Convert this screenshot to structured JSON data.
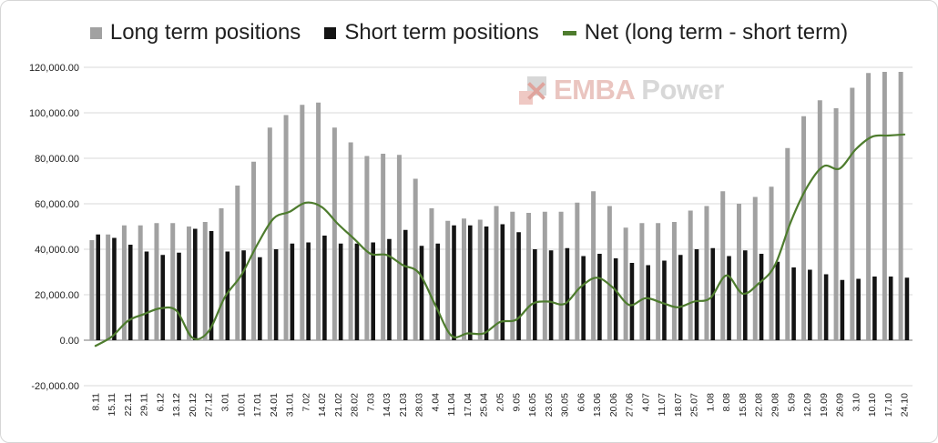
{
  "legend": {
    "items": [
      {
        "label": "Long term positions",
        "swatch": "square",
        "color": "#a1a1a1"
      },
      {
        "label": "Short term positions",
        "swatch": "square",
        "color": "#141414"
      },
      {
        "label": "Net (long term - short term)",
        "swatch": "dash",
        "color": "#4e7c2e"
      }
    ]
  },
  "watermark": {
    "brand_primary": "EMBA",
    "brand_secondary": "Power"
  },
  "colors": {
    "grid": "#d9d9d9",
    "zero_axis": "#a3a3a3",
    "tick_text": "#222222",
    "background": "#ffffff",
    "long_bar": "#a1a1a1",
    "short_bar": "#141414",
    "net_line": "#4e7c2e"
  },
  "chart_data": {
    "type": "bar",
    "title": "",
    "xlabel": "",
    "ylabel": "",
    "grid": true,
    "legend_position": "top",
    "x_label_rotation": -90,
    "ylim": [
      -20000,
      120000
    ],
    "ytick_step": 20000,
    "yticks": [
      {
        "value": 120000,
        "label": "120,000.00"
      },
      {
        "value": 100000,
        "label": "100,000.00"
      },
      {
        "value": 80000,
        "label": "80,000.00"
      },
      {
        "value": 60000,
        "label": "60,000.00"
      },
      {
        "value": 40000,
        "label": "40,000.00"
      },
      {
        "value": 20000,
        "label": "20,000.00"
      },
      {
        "value": 0,
        "label": "0.00"
      },
      {
        "value": -20000,
        "label": "-20,000.00"
      }
    ],
    "categories": [
      "8.11",
      "15.11",
      "22.11",
      "29.11",
      "6.12",
      "13.12",
      "20.12",
      "27.12",
      "3.01",
      "10.01",
      "17.01",
      "24.01",
      "31.01",
      "7.02",
      "14.02",
      "21.02",
      "28.02",
      "7.03",
      "14.03",
      "21.03",
      "28.03",
      "4.04",
      "11.04",
      "17.04",
      "25.04",
      "2.05",
      "9.05",
      "16.05",
      "23.05",
      "30.05",
      "6.06",
      "13.06",
      "20.06",
      "27.06",
      "4.07",
      "11.07",
      "18.07",
      "25.07",
      "1.08",
      "8.08",
      "15.08",
      "22.08",
      "29.08",
      "5.09",
      "12.09",
      "19.09",
      "26.09",
      "3.10",
      "10.10",
      "17.10",
      "24.10"
    ],
    "series": [
      {
        "name": "Long term positions",
        "type": "bar",
        "color": "#a1a1a1",
        "values": [
          44000,
          46500,
          50500,
          50500,
          51500,
          51500,
          50000,
          52000,
          58000,
          68000,
          78500,
          93500,
          99000,
          103500,
          104500,
          93500,
          87000,
          81000,
          82000,
          81500,
          71000,
          58000,
          52500,
          53500,
          53000,
          59000,
          56500,
          56000,
          56500,
          56500,
          60500,
          65500,
          59000,
          49500,
          51500,
          51500,
          52000,
          57000,
          59000,
          65500,
          60000,
          63000,
          67500,
          84500,
          98500,
          105500,
          102000,
          111000,
          117500,
          118000,
          118000
        ]
      },
      {
        "name": "Short term positions",
        "type": "bar",
        "color": "#141414",
        "values": [
          46500,
          45000,
          42000,
          39000,
          37500,
          38500,
          49000,
          48000,
          39000,
          39500,
          36500,
          40000,
          42500,
          43000,
          46000,
          42500,
          42500,
          43000,
          44500,
          48500,
          41500,
          42500,
          50500,
          50500,
          50000,
          51000,
          47500,
          40000,
          39500,
          40500,
          37000,
          38000,
          36000,
          34000,
          33000,
          35000,
          37500,
          40000,
          40500,
          37000,
          39500,
          38000,
          34500,
          32000,
          31000,
          29000,
          26500,
          27000,
          28000,
          28000,
          27500
        ]
      },
      {
        "name": "Net (long term - short term)",
        "type": "line",
        "color": "#4e7c2e",
        "values": [
          -2500,
          1500,
          8500,
          11500,
          14000,
          13000,
          1000,
          4000,
          19000,
          28500,
          42000,
          53500,
          56500,
          60500,
          58500,
          51000,
          44500,
          38000,
          37500,
          33000,
          29500,
          15500,
          2000,
          3000,
          3000,
          8000,
          9000,
          16000,
          17000,
          16000,
          23500,
          27500,
          23000,
          15500,
          18500,
          16500,
          14500,
          17000,
          18500,
          28500,
          20500,
          25000,
          33000,
          52500,
          67500,
          76500,
          75500,
          84000,
          89500,
          90000,
          90500
        ]
      }
    ]
  }
}
